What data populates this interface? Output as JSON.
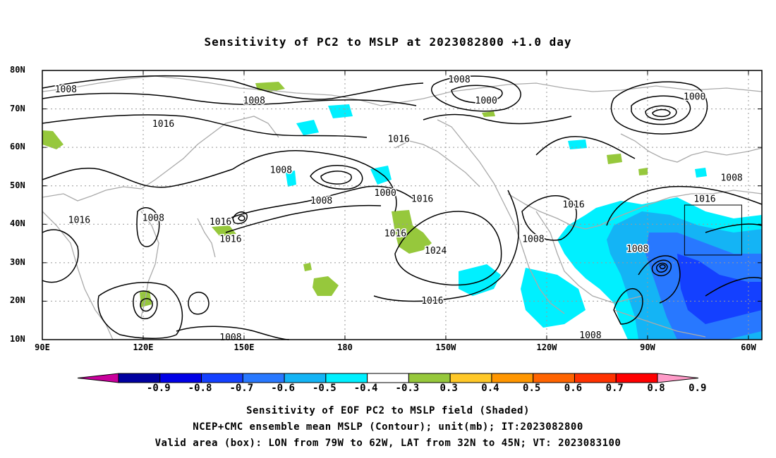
{
  "title": "Sensitivity of PC2 to MSLP at 2023082800 +1.0 day",
  "map": {
    "lat_ticks": [
      "80N",
      "70N",
      "60N",
      "50N",
      "40N",
      "30N",
      "20N",
      "10N"
    ],
    "lon_ticks": [
      "90E",
      "120E",
      "150E",
      "180",
      "150W",
      "120W",
      "90W",
      "60W"
    ],
    "lat_range": [
      10,
      80
    ],
    "lon_range": [
      90,
      304
    ],
    "contour_labels": [
      {
        "text": "1008",
        "lon": 97,
        "lat": 75
      },
      {
        "text": "1008",
        "lon": 153,
        "lat": 72
      },
      {
        "text": "1016",
        "lon": 126,
        "lat": 66
      },
      {
        "text": "1016",
        "lon": 101,
        "lat": 41
      },
      {
        "text": "1008",
        "lon": 123,
        "lon_note": "",
        "lat": 41.5
      },
      {
        "text": "1016",
        "lon": 143,
        "lat": 40.5
      },
      {
        "text": "1016",
        "lon": 146,
        "lat": 36
      },
      {
        "text": "1008",
        "lon": 161,
        "lat": 54
      },
      {
        "text": "1016",
        "lon": 196,
        "lat": 62
      },
      {
        "text": "1008",
        "lon": 214,
        "lat": 77.5
      },
      {
        "text": "1000",
        "lon": 222,
        "lat": 72
      },
      {
        "text": "1000",
        "lon": 284,
        "lat": 73
      },
      {
        "text": "1000",
        "lon": 192,
        "lat": 48
      },
      {
        "text": "1008",
        "lon": 173,
        "lat": 46
      },
      {
        "text": "1016",
        "lon": 203,
        "lat": 46.5
      },
      {
        "text": "1016",
        "lon": 195,
        "lat": 37.5
      },
      {
        "text": "1024",
        "lon": 207,
        "lat": 33
      },
      {
        "text": "1016",
        "lon": 206,
        "lat": 20
      },
      {
        "text": "1008",
        "lon": 236,
        "lat": 36
      },
      {
        "text": "1016",
        "lon": 248,
        "lat": 45
      },
      {
        "text": "1008",
        "lon": 253,
        "lat": 11
      },
      {
        "text": "1008",
        "lon": 267,
        "lat": 33.5
      },
      {
        "text": "1016",
        "lon": 287,
        "lat": 46.5
      },
      {
        "text": "1008",
        "lon": 295,
        "lat": 52
      },
      {
        "text": "1008",
        "lon": 146,
        "lat": 10.5
      }
    ],
    "valid_box": {
      "lon_min": 281,
      "lon_max": 298,
      "lat_min": 32,
      "lat_max": 45
    }
  },
  "colorbar": {
    "labels": [
      "-0.9",
      "-0.8",
      "-0.7",
      "-0.6",
      "-0.5",
      "-0.4",
      "-0.3",
      "0.3",
      "0.4",
      "0.5",
      "0.6",
      "0.7",
      "0.8",
      "0.9"
    ],
    "colors": [
      "#0000a0",
      "#0000e6",
      "#1440ff",
      "#2878ff",
      "#14b4f5",
      "#00f0ff",
      "#ffffff",
      "#96c83c",
      "#ffc828",
      "#ff9600",
      "#ff6400",
      "#ff3200",
      "#ff0000"
    ],
    "low_end_color": "#c8009b",
    "high_end_color": "#ff9bc8"
  },
  "captions": [
    "Sensitivity of EOF PC2 to MSLP field (Shaded)",
    "NCEP+CMC ensemble mean MSLP (Contour); unit(mb); IT:2023082800",
    "Valid area (box): LON from 79W to 62W, LAT from 32N to 45N; VT: 2023083100"
  ]
}
